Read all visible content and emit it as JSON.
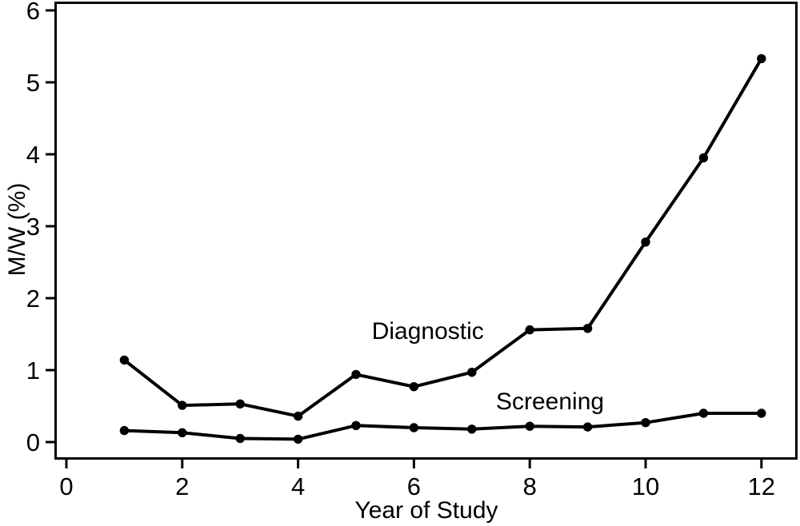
{
  "chart_data": {
    "type": "line",
    "title": "",
    "xlabel": "Year of Study",
    "ylabel": "M/W (%)",
    "x": [
      1,
      2,
      3,
      4,
      5,
      6,
      7,
      8,
      9,
      10,
      11,
      12
    ],
    "series": [
      {
        "name": "Diagnostic",
        "values": [
          1.14,
          0.51,
          0.53,
          0.36,
          0.94,
          0.77,
          0.97,
          1.56,
          1.58,
          2.78,
          3.95,
          5.33
        ]
      },
      {
        "name": "Screening",
        "values": [
          0.16,
          0.13,
          0.05,
          0.04,
          0.23,
          0.2,
          0.18,
          0.22,
          0.21,
          0.27,
          0.4,
          0.4
        ]
      }
    ],
    "xticks": [
      0,
      2,
      4,
      6,
      8,
      10,
      12
    ],
    "yticks": [
      0,
      1,
      2,
      3,
      4,
      5,
      6
    ],
    "xlim": [
      -0.2,
      12.6
    ],
    "ylim": [
      -0.25,
      6.1
    ],
    "grid": false,
    "legend_position": "inline-annotations",
    "annotations": [
      {
        "text": "Diagnostic",
        "x": 6.24,
        "y": 1.53
      },
      {
        "text": "Screening",
        "x": 8.35,
        "y": 0.56
      }
    ],
    "line_color": "#000000",
    "marker": "circle",
    "background": "#ffffff"
  }
}
